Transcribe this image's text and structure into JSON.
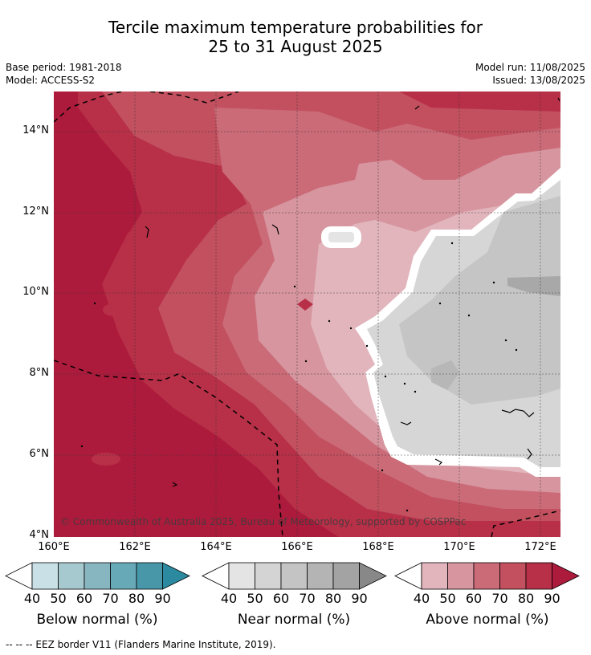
{
  "title_line1": "Tercile maximum temperature probabilities for",
  "title_line2": "25 to 31 August 2025",
  "base_period": "Base period: 1981-2018",
  "model": "Model: ACCESS-S2",
  "model_run": "Model run: 11/08/2025",
  "issued": "Issued: 13/08/2025",
  "copyright": "© Commonwealth of Australia 2025, Bureau of Meteorology, supported by COSPPac",
  "lat_labels": [
    "14°N",
    "12°N",
    "10°N",
    "8°N",
    "6°N",
    "4°N"
  ],
  "lon_labels": [
    "160°E",
    "162°E",
    "164°E",
    "166°E",
    "168°E",
    "170°E",
    "172°E"
  ],
  "legends": [
    {
      "title": "Below normal (%)",
      "ticks": [
        "40",
        "50",
        "60",
        "70",
        "80",
        "90"
      ],
      "colors": [
        "#ffffff",
        "#c9e0e6",
        "#a6c8cf",
        "#87b5c0",
        "#68a9b8",
        "#4897a9",
        "#2b8a9f"
      ]
    },
    {
      "title": "Near normal (%)",
      "ticks": [
        "40",
        "50",
        "60",
        "70",
        "80",
        "90"
      ],
      "colors": [
        "#ffffff",
        "#e4e4e4",
        "#d4d4d4",
        "#c4c4c4",
        "#b4b4b4",
        "#a3a3a3",
        "#888888"
      ]
    },
    {
      "title": "Above normal (%)",
      "ticks": [
        "40",
        "50",
        "60",
        "70",
        "80",
        "90"
      ],
      "colors": [
        "#ffffff",
        "#e2b5bd",
        "#d6959f",
        "#cb6b78",
        "#c2505f",
        "#b82f48",
        "#ad1b3c"
      ]
    }
  ],
  "footnote": "--  --  -- EEZ border V11 (Flanders Marine Institute, 2019)."
}
